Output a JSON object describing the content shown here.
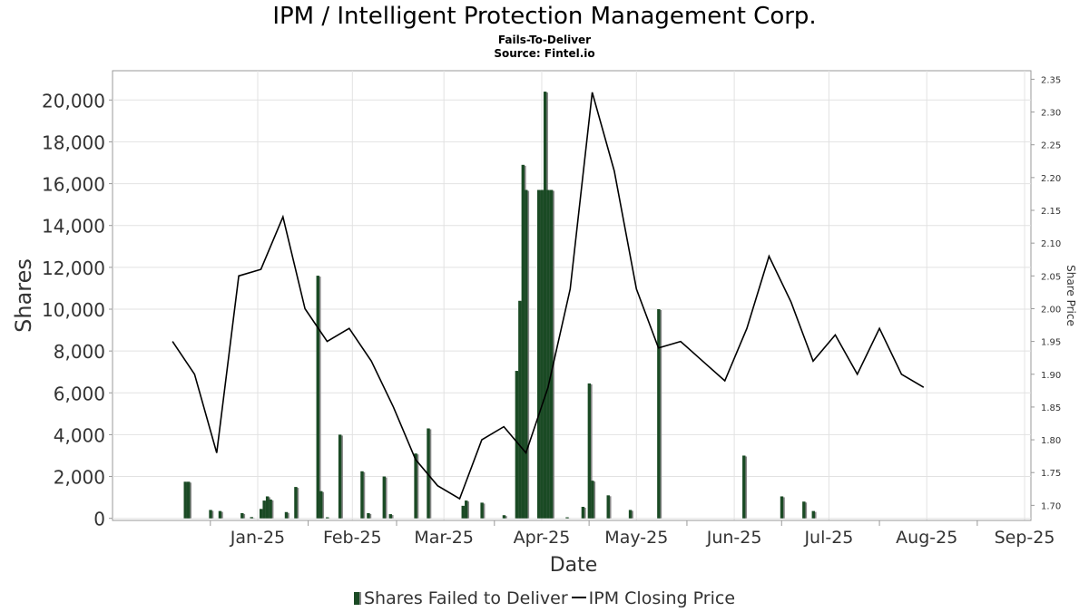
{
  "header": {
    "title": "IPM / Intelligent Protection Management Corp.",
    "subtitle": "Fails-To-Deliver",
    "source": "Source: Fintel.io"
  },
  "chart_data": {
    "type": "bar",
    "xlabel": "Date",
    "ylabel": "Shares",
    "y2label": "Share Price",
    "ylim": [
      -100,
      21400
    ],
    "y2lim": [
      1.677,
      2.363
    ],
    "x_ticks": [
      "Jan-25",
      "Feb-25",
      "Mar-25",
      "Apr-25",
      "May-25",
      "Jun-25",
      "Jul-25",
      "Aug-25",
      "Sep-25"
    ],
    "y_ticks": [
      "0",
      "2,000",
      "4,000",
      "6,000",
      "8,000",
      "10,000",
      "12,000",
      "14,000",
      "16,000",
      "18,000",
      "20,000"
    ],
    "y2_ticks": [
      "1.70",
      "1.75",
      "1.80",
      "1.85",
      "1.90",
      "1.95",
      "2.00",
      "2.05",
      "2.10",
      "2.15",
      "2.20",
      "2.25",
      "2.30",
      "2.35"
    ],
    "grid": true,
    "legend_position": "bottom",
    "colors": {
      "bar": "#1a4a24",
      "bar_shadow": "#888888",
      "line": "#000000"
    },
    "series": [
      {
        "name": "Shares Failed to Deliver",
        "type": "bar",
        "points": [
          {
            "x": "2024-12-23",
            "y": 1750
          },
          {
            "x": "2024-12-24",
            "y": 1750
          },
          {
            "x": "2024-12-31",
            "y": 400
          },
          {
            "x": "2025-01-03",
            "y": 350
          },
          {
            "x": "2025-01-10",
            "y": 250
          },
          {
            "x": "2025-01-13",
            "y": 60
          },
          {
            "x": "2025-01-16",
            "y": 450
          },
          {
            "x": "2025-01-17",
            "y": 850
          },
          {
            "x": "2025-01-18",
            "y": 1050
          },
          {
            "x": "2025-01-19",
            "y": 900
          },
          {
            "x": "2025-01-24",
            "y": 300
          },
          {
            "x": "2025-01-27",
            "y": 1500
          },
          {
            "x": "2025-02-03",
            "y": 11600
          },
          {
            "x": "2025-02-04",
            "y": 1300
          },
          {
            "x": "2025-02-06",
            "y": 50
          },
          {
            "x": "2025-02-10",
            "y": 4000
          },
          {
            "x": "2025-02-17",
            "y": 2250
          },
          {
            "x": "2025-02-19",
            "y": 250
          },
          {
            "x": "2025-02-24",
            "y": 2000
          },
          {
            "x": "2025-02-26",
            "y": 200
          },
          {
            "x": "2025-03-06",
            "y": 3100
          },
          {
            "x": "2025-03-10",
            "y": 4300
          },
          {
            "x": "2025-03-21",
            "y": 600
          },
          {
            "x": "2025-03-22",
            "y": 850
          },
          {
            "x": "2025-03-27",
            "y": 750
          },
          {
            "x": "2025-04-03",
            "y": 150
          },
          {
            "x": "2025-04-07",
            "y": 7050
          },
          {
            "x": "2025-04-08",
            "y": 10400
          },
          {
            "x": "2025-04-09",
            "y": 16900
          },
          {
            "x": "2025-04-10",
            "y": 15700
          },
          {
            "x": "2025-04-14",
            "y": 15700
          },
          {
            "x": "2025-04-15",
            "y": 15700
          },
          {
            "x": "2025-04-16",
            "y": 20400
          },
          {
            "x": "2025-04-17",
            "y": 15700
          },
          {
            "x": "2025-04-18",
            "y": 15700
          },
          {
            "x": "2025-04-23",
            "y": 50
          },
          {
            "x": "2025-04-28",
            "y": 550
          },
          {
            "x": "2025-04-30",
            "y": 6450
          },
          {
            "x": "2025-05-01",
            "y": 1800
          },
          {
            "x": "2025-05-06",
            "y": 1100
          },
          {
            "x": "2025-05-13",
            "y": 400
          },
          {
            "x": "2025-05-22",
            "y": 10000
          },
          {
            "x": "2025-06-18",
            "y": 3000
          },
          {
            "x": "2025-06-30",
            "y": 1050
          },
          {
            "x": "2025-07-07",
            "y": 800
          },
          {
            "x": "2025-07-10",
            "y": 350
          }
        ]
      },
      {
        "name": "IPM Closing Price",
        "type": "line",
        "axis": "right",
        "points": [
          {
            "x": "2024-12-20",
            "y": 1.95
          },
          {
            "x": "2024-12-27",
            "y": 1.9
          },
          {
            "x": "2025-01-03",
            "y": 1.78
          },
          {
            "x": "2025-01-10",
            "y": 2.05
          },
          {
            "x": "2025-01-17",
            "y": 2.06
          },
          {
            "x": "2025-01-24",
            "y": 2.14
          },
          {
            "x": "2025-01-31",
            "y": 2.0
          },
          {
            "x": "2025-02-07",
            "y": 1.95
          },
          {
            "x": "2025-02-14",
            "y": 1.97
          },
          {
            "x": "2025-02-21",
            "y": 1.92
          },
          {
            "x": "2025-02-28",
            "y": 1.85
          },
          {
            "x": "2025-03-07",
            "y": 1.77
          },
          {
            "x": "2025-03-14",
            "y": 1.73
          },
          {
            "x": "2025-03-21",
            "y": 1.71
          },
          {
            "x": "2025-03-28",
            "y": 1.8
          },
          {
            "x": "2025-04-04",
            "y": 1.82
          },
          {
            "x": "2025-04-11",
            "y": 1.78
          },
          {
            "x": "2025-04-18",
            "y": 1.88
          },
          {
            "x": "2025-04-25",
            "y": 2.03
          },
          {
            "x": "2025-05-02",
            "y": 2.33
          },
          {
            "x": "2025-05-09",
            "y": 2.21
          },
          {
            "x": "2025-05-16",
            "y": 2.03
          },
          {
            "x": "2025-05-23",
            "y": 1.94
          },
          {
            "x": "2025-05-30",
            "y": 1.95
          },
          {
            "x": "2025-06-06",
            "y": 1.92
          },
          {
            "x": "2025-06-13",
            "y": 1.89
          },
          {
            "x": "2025-06-20",
            "y": 1.97
          },
          {
            "x": "2025-06-27",
            "y": 2.08
          },
          {
            "x": "2025-07-04",
            "y": 2.01
          },
          {
            "x": "2025-07-11",
            "y": 1.92
          },
          {
            "x": "2025-07-18",
            "y": 1.96
          },
          {
            "x": "2025-07-25",
            "y": 1.9
          },
          {
            "x": "2025-08-01",
            "y": 1.97
          },
          {
            "x": "2025-08-08",
            "y": 1.9
          },
          {
            "x": "2025-08-15",
            "y": 1.88
          }
        ]
      }
    ]
  }
}
